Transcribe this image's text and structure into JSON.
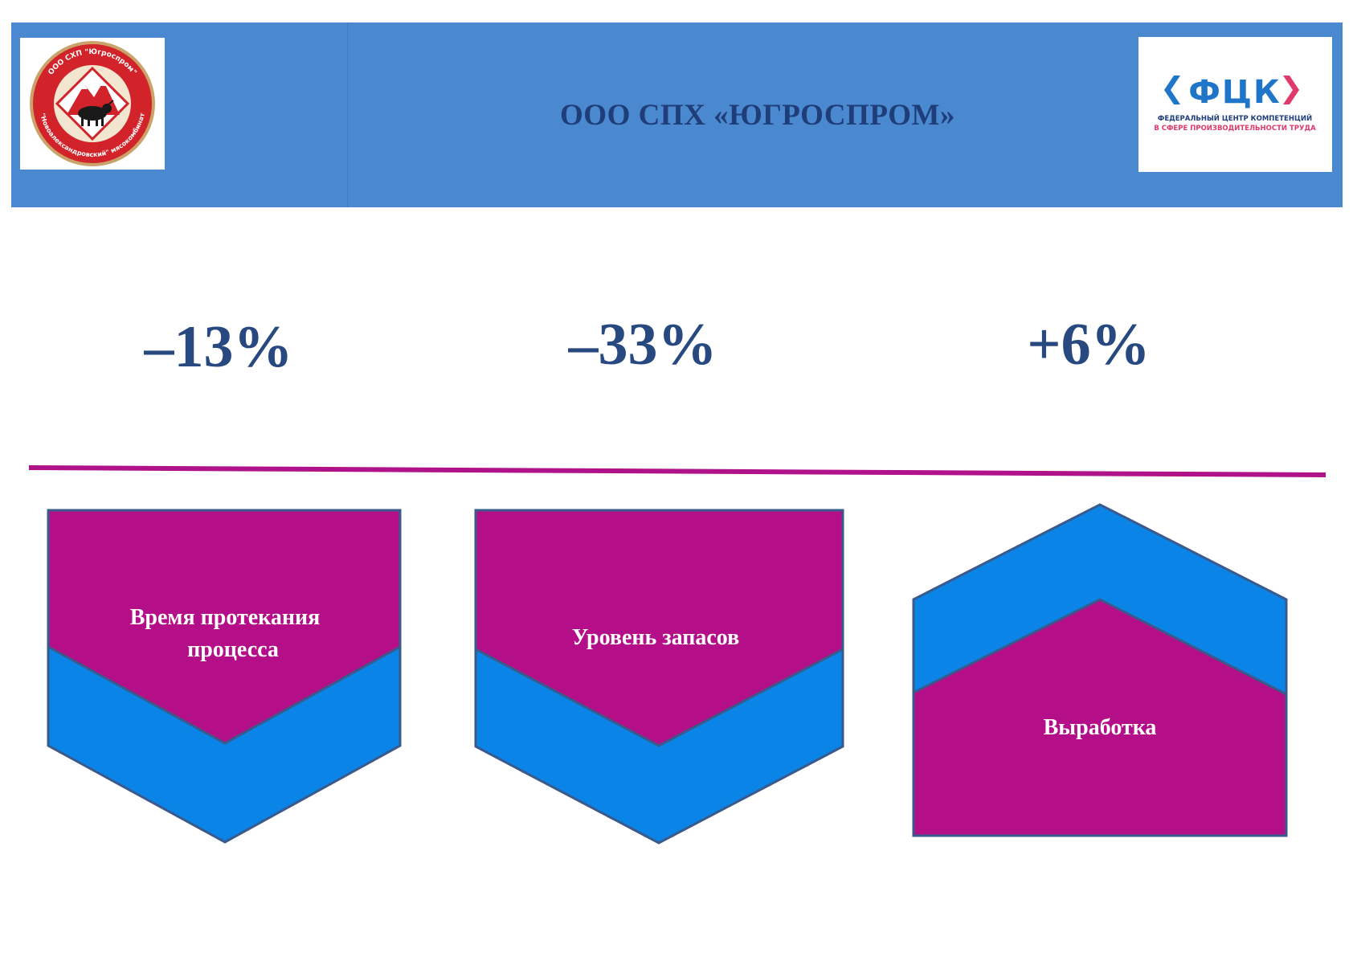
{
  "header": {
    "title": "ООО СПХ «ЮГРОСПРОМ»",
    "left_logo": {
      "icon": "company-seal-logo",
      "ring_text_top": "ООО СХП \"Югроспром\"",
      "ring_text_bottom": "\"Новоалександровский\" мясокомбинат"
    },
    "right_logo": {
      "icon": "fck-logo",
      "brand": "ФЦК",
      "line1": "ФЕДЕРАЛЬНЫЙ ЦЕНТР КОМПЕТЕНЦИЙ",
      "line2": "В СФЕРЕ ПРОИЗВОДИТЕЛЬНОСТИ ТРУДА"
    }
  },
  "metrics": [
    {
      "value": "–13%",
      "label_line1": "Время протекания",
      "label_line2": "процесса",
      "direction": "down"
    },
    {
      "value": "–33%",
      "label_line1": "Уровень запасов",
      "label_line2": "",
      "direction": "down"
    },
    {
      "value": "+6%",
      "label_line1": "Выработка",
      "label_line2": "",
      "direction": "up"
    }
  ],
  "colors": {
    "header_bg": "#4a88d0",
    "title_text": "#1f3d78",
    "metric_text": "#27497f",
    "divider": "#b0128a",
    "shape_magenta": "#b40f88",
    "shape_blue": "#0a84e6",
    "shape_outline": "#3a5a8c"
  }
}
